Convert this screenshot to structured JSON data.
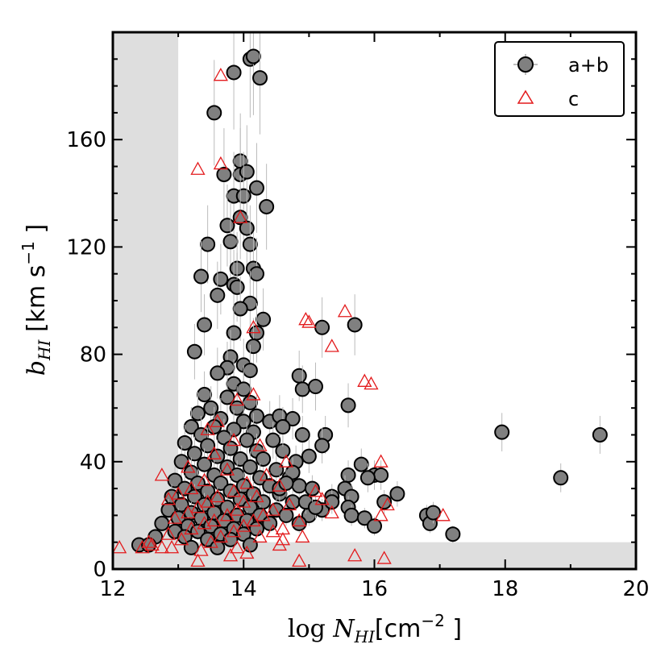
{
  "chart_data": {
    "type": "scatter",
    "xlim": [
      12,
      20
    ],
    "ylim": [
      0,
      200
    ],
    "xticks": [
      12,
      14,
      16,
      18,
      20
    ],
    "yticks": [
      0,
      40,
      80,
      120,
      160
    ],
    "xlabel": {
      "prefix": "log ",
      "var": "N",
      "sub": "HI",
      "unit": "[cm",
      "exp": "−2",
      "unit_close": " ]"
    },
    "ylabel": {
      "var": "b",
      "sub": "HI",
      "unit": " [km s",
      "exp": "−1",
      "unit_close": " ]"
    },
    "legend": {
      "position": "top-right"
    },
    "shaded_regions": [
      {
        "x": [
          12,
          13
        ],
        "y": [
          0,
          200
        ]
      },
      {
        "x": [
          12,
          20
        ],
        "y": [
          0,
          10
        ]
      }
    ],
    "series": [
      {
        "name": "a+b",
        "marker": "circle",
        "fill": "#808080",
        "edge": "#000000",
        "points": [
          [
            14.1,
            190
          ],
          [
            14.15,
            191
          ],
          [
            13.85,
            185
          ],
          [
            14.25,
            183
          ],
          [
            13.55,
            170
          ],
          [
            13.95,
            152
          ],
          [
            13.7,
            147
          ],
          [
            13.95,
            147
          ],
          [
            14.05,
            148
          ],
          [
            14.2,
            142
          ],
          [
            13.85,
            139
          ],
          [
            14.0,
            139
          ],
          [
            14.35,
            135
          ],
          [
            13.95,
            131
          ],
          [
            13.75,
            128
          ],
          [
            14.05,
            127
          ],
          [
            13.8,
            122
          ],
          [
            13.45,
            121
          ],
          [
            14.1,
            121
          ],
          [
            13.9,
            112
          ],
          [
            14.15,
            112
          ],
          [
            14.2,
            110
          ],
          [
            13.35,
            109
          ],
          [
            13.65,
            108
          ],
          [
            13.85,
            106
          ],
          [
            13.9,
            105
          ],
          [
            13.6,
            102
          ],
          [
            14.1,
            99
          ],
          [
            13.95,
            97
          ],
          [
            14.3,
            93
          ],
          [
            13.4,
            91
          ],
          [
            13.85,
            88
          ],
          [
            14.2,
            88
          ],
          [
            14.15,
            83
          ],
          [
            13.25,
            81
          ],
          [
            13.8,
            79
          ],
          [
            14.0,
            76
          ],
          [
            13.75,
            75
          ],
          [
            14.1,
            74
          ],
          [
            13.6,
            73
          ],
          [
            13.85,
            69
          ],
          [
            14.0,
            67
          ],
          [
            13.4,
            65
          ],
          [
            13.75,
            64
          ],
          [
            14.1,
            62
          ],
          [
            13.5,
            60
          ],
          [
            13.9,
            60
          ],
          [
            14.2,
            57
          ],
          [
            13.3,
            58
          ],
          [
            13.65,
            56
          ],
          [
            14.0,
            55
          ],
          [
            14.4,
            55
          ],
          [
            13.2,
            53
          ],
          [
            13.55,
            53
          ],
          [
            13.85,
            52
          ],
          [
            14.15,
            51
          ],
          [
            13.35,
            50
          ],
          [
            13.7,
            49
          ],
          [
            14.05,
            48
          ],
          [
            14.45,
            48
          ],
          [
            13.1,
            47
          ],
          [
            13.45,
            46
          ],
          [
            13.8,
            45
          ],
          [
            14.2,
            44
          ],
          [
            14.6,
            44
          ],
          [
            13.25,
            43
          ],
          [
            13.6,
            42
          ],
          [
            13.95,
            41
          ],
          [
            14.3,
            41
          ],
          [
            13.05,
            40
          ],
          [
            13.4,
            39
          ],
          [
            13.75,
            38
          ],
          [
            14.1,
            38
          ],
          [
            14.5,
            37
          ],
          [
            13.2,
            36
          ],
          [
            13.55,
            35
          ],
          [
            13.9,
            35
          ],
          [
            14.25,
            34
          ],
          [
            14.7,
            34
          ],
          [
            12.95,
            33
          ],
          [
            13.3,
            32
          ],
          [
            13.65,
            32
          ],
          [
            14.0,
            31
          ],
          [
            14.4,
            31
          ],
          [
            14.85,
            31
          ],
          [
            13.1,
            30
          ],
          [
            13.45,
            29
          ],
          [
            13.8,
            29
          ],
          [
            14.15,
            28
          ],
          [
            14.55,
            28
          ],
          [
            12.9,
            27
          ],
          [
            13.25,
            27
          ],
          [
            13.6,
            26
          ],
          [
            13.95,
            26
          ],
          [
            14.3,
            25
          ],
          [
            14.75,
            25
          ],
          [
            13.05,
            24
          ],
          [
            13.4,
            24
          ],
          [
            13.75,
            23
          ],
          [
            14.1,
            23
          ],
          [
            14.5,
            22
          ],
          [
            12.85,
            22
          ],
          [
            13.2,
            21
          ],
          [
            13.55,
            21
          ],
          [
            13.9,
            20
          ],
          [
            14.25,
            20
          ],
          [
            14.65,
            20
          ],
          [
            13.0,
            19
          ],
          [
            13.35,
            19
          ],
          [
            13.7,
            18
          ],
          [
            14.05,
            18
          ],
          [
            14.4,
            17
          ],
          [
            12.75,
            17
          ],
          [
            13.15,
            16
          ],
          [
            13.5,
            16
          ],
          [
            13.85,
            15
          ],
          [
            14.2,
            15
          ],
          [
            12.95,
            14
          ],
          [
            13.3,
            14
          ],
          [
            13.65,
            13
          ],
          [
            14.0,
            13
          ],
          [
            12.65,
            12
          ],
          [
            13.1,
            12
          ],
          [
            13.45,
            11
          ],
          [
            13.8,
            11
          ],
          [
            12.4,
            9
          ],
          [
            12.55,
            9
          ],
          [
            13.2,
            8
          ],
          [
            13.6,
            8
          ],
          [
            14.1,
            9
          ],
          [
            14.85,
            72
          ],
          [
            14.9,
            67
          ],
          [
            15.1,
            68
          ],
          [
            15.2,
            90
          ],
          [
            15.7,
            91
          ],
          [
            15.25,
            50
          ],
          [
            15.2,
            46
          ],
          [
            15.6,
            61
          ],
          [
            14.55,
            57
          ],
          [
            14.75,
            56
          ],
          [
            14.6,
            53
          ],
          [
            14.9,
            50
          ],
          [
            15.0,
            42
          ],
          [
            14.8,
            40
          ],
          [
            15.6,
            35
          ],
          [
            15.8,
            39
          ],
          [
            16.0,
            35
          ],
          [
            16.1,
            35
          ],
          [
            15.55,
            30
          ],
          [
            15.65,
            27
          ],
          [
            15.9,
            34
          ],
          [
            16.35,
            28
          ],
          [
            16.15,
            25
          ],
          [
            15.6,
            23
          ],
          [
            15.65,
            20
          ],
          [
            15.0,
            20
          ],
          [
            15.35,
            27
          ],
          [
            15.2,
            22
          ],
          [
            14.95,
            25
          ],
          [
            14.85,
            17
          ],
          [
            15.35,
            25
          ],
          [
            15.85,
            19
          ],
          [
            16.0,
            16
          ],
          [
            15.1,
            23
          ],
          [
            14.55,
            30
          ],
          [
            16.8,
            20
          ],
          [
            16.85,
            17
          ],
          [
            16.9,
            21
          ],
          [
            17.2,
            13
          ],
          [
            17.95,
            51
          ],
          [
            18.85,
            34
          ],
          [
            19.45,
            50
          ],
          [
            14.75,
            36
          ],
          [
            14.65,
            32
          ],
          [
            15.05,
            30
          ]
        ]
      },
      {
        "name": "c",
        "marker": "triangle-open",
        "edge": "#e31a1c",
        "points": [
          [
            13.65,
            184
          ],
          [
            13.65,
            151
          ],
          [
            13.3,
            149
          ],
          [
            13.95,
            131
          ],
          [
            14.15,
            90
          ],
          [
            14.95,
            93
          ],
          [
            15.0,
            92
          ],
          [
            15.55,
            96
          ],
          [
            15.35,
            83
          ],
          [
            15.85,
            70
          ],
          [
            15.95,
            69
          ],
          [
            14.15,
            65
          ],
          [
            13.9,
            63
          ],
          [
            13.6,
            55
          ],
          [
            13.45,
            52
          ],
          [
            13.85,
            48
          ],
          [
            14.25,
            46
          ],
          [
            13.55,
            43
          ],
          [
            14.65,
            40
          ],
          [
            16.1,
            40
          ],
          [
            13.15,
            38
          ],
          [
            13.75,
            37
          ],
          [
            14.35,
            35
          ],
          [
            12.75,
            35
          ],
          [
            13.4,
            33
          ],
          [
            14.05,
            32
          ],
          [
            14.55,
            31
          ],
          [
            13.2,
            30
          ],
          [
            13.85,
            29
          ],
          [
            15.1,
            29
          ],
          [
            13.0,
            28
          ],
          [
            13.6,
            27
          ],
          [
            14.2,
            27
          ],
          [
            15.2,
            26
          ],
          [
            12.85,
            26
          ],
          [
            13.45,
            25
          ],
          [
            14.0,
            25
          ],
          [
            14.7,
            24
          ],
          [
            16.2,
            24
          ],
          [
            13.3,
            23
          ],
          [
            13.9,
            22
          ],
          [
            14.45,
            22
          ],
          [
            15.35,
            21
          ],
          [
            13.15,
            21
          ],
          [
            13.75,
            20
          ],
          [
            14.3,
            20
          ],
          [
            16.1,
            20
          ],
          [
            17.05,
            20
          ],
          [
            12.95,
            19
          ],
          [
            13.55,
            18
          ],
          [
            14.15,
            18
          ],
          [
            14.85,
            18
          ],
          [
            13.4,
            17
          ],
          [
            14.0,
            16
          ],
          [
            14.6,
            15
          ],
          [
            13.2,
            15
          ],
          [
            13.85,
            14
          ],
          [
            14.45,
            14
          ],
          [
            12.85,
            13
          ],
          [
            13.65,
            12
          ],
          [
            14.25,
            12
          ],
          [
            14.9,
            12
          ],
          [
            13.05,
            11
          ],
          [
            13.5,
            10
          ],
          [
            14.6,
            11
          ],
          [
            12.55,
            10
          ],
          [
            12.6,
            9
          ],
          [
            12.75,
            8
          ],
          [
            12.1,
            8
          ],
          [
            12.45,
            8
          ],
          [
            12.9,
            8
          ],
          [
            13.35,
            7
          ],
          [
            13.9,
            8
          ],
          [
            14.55,
            9
          ],
          [
            15.7,
            5
          ],
          [
            16.15,
            4
          ],
          [
            14.85,
            3
          ],
          [
            13.3,
            3
          ],
          [
            13.8,
            5
          ],
          [
            14.05,
            6
          ]
        ]
      }
    ]
  }
}
